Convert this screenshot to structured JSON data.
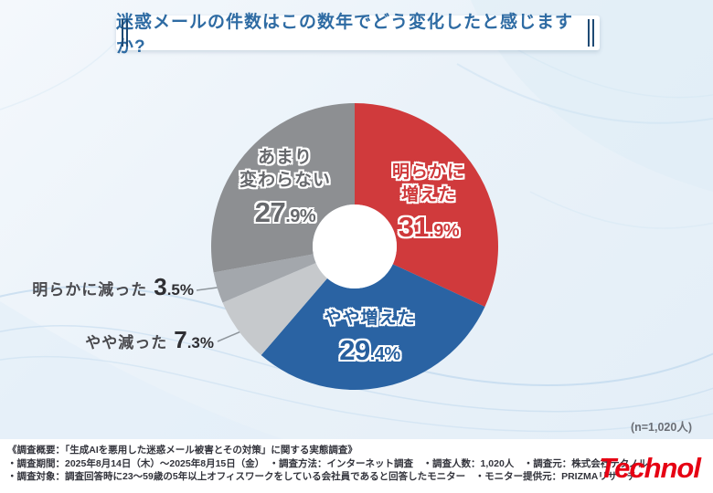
{
  "title": "迷惑メールの件数はこの数年でどう変化したと感じますか?",
  "sample_note": "(n=1,020人)",
  "brand": {
    "logo_text": "Technol",
    "logo_color": "#e60013"
  },
  "colors": {
    "title_text": "#2e6ba3",
    "title_bars": "#1f4a74",
    "background": "#eef4fa",
    "footer_bg": "#ffffff"
  },
  "chart_data": {
    "type": "pie",
    "donut": true,
    "title": "迷惑メールの件数はこの数年でどう変化したと感じますか?",
    "unit": "%",
    "sample_size": "n=1,020",
    "start_angle_deg": 0,
    "direction": "clockwise",
    "categories": [
      "明らかに増えた",
      "やや増えた",
      "やや減った",
      "明らかに減った",
      "あまり変わらない"
    ],
    "values": [
      31.9,
      29.4,
      7.3,
      3.5,
      27.9
    ],
    "segments": [
      {
        "key": "akiraka-fueta",
        "label": "明らかに増えた",
        "label_lines": "明らかに\n増えた",
        "value": 31.9,
        "pct_int": "31",
        "pct_frac": ".9%",
        "color": "#d03a3c",
        "text_color": "#cf393b",
        "label_pos": "inside"
      },
      {
        "key": "yaya-fueta",
        "label": "やや増えた",
        "label_lines": "やや増えた",
        "value": 29.4,
        "pct_int": "29",
        "pct_frac": ".4%",
        "color": "#2a63a3",
        "text_color": "#275f9e",
        "label_pos": "inside"
      },
      {
        "key": "yaya-hetta",
        "label": "やや減った",
        "value": 7.3,
        "pct_int": "7",
        "pct_frac": ".3%",
        "color": "#c6c9cc",
        "label_pos": "outside"
      },
      {
        "key": "akiraka-hetta",
        "label": "明らかに減った",
        "value": 3.5,
        "pct_int": "3",
        "pct_frac": ".5%",
        "color": "#a3a7ac",
        "label_pos": "outside"
      },
      {
        "key": "amari-kawaranai",
        "label": "あまり変わらない",
        "label_lines": "あまり\n変わらない",
        "value": 27.9,
        "pct_int": "27",
        "pct_frac": ".9%",
        "color": "#8d8f92",
        "text_color": "#66686c",
        "label_pos": "inside"
      }
    ]
  },
  "footer": {
    "lines": [
      "《調査概要：「生成AIを悪用した迷惑メール被害とその対策」に関する実態調査》",
      "・調査期間：2025年8月14日（木）～2025年8月15日（金）　・調査方法：インターネット調査　・調査人数：1,020人　・調査元：株式会社テクノル",
      "・調査対象：調査回答時に23～59歳の5年以上オフィスワークをしている会社員であると回答したモニター　・モニター提供元：PRIZMAリサーチ"
    ]
  }
}
